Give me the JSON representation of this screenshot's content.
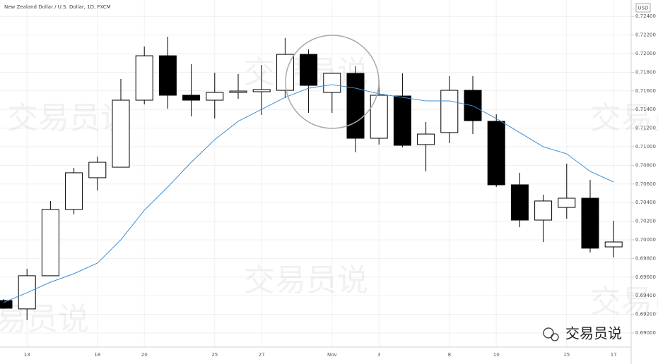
{
  "chart_data": {
    "type": "candlestick",
    "title": "New Zealand Dollar / U.S. Dollar, 1D, FXCM",
    "currency": "USD",
    "watermark": "交易员说",
    "logo": "交易员说",
    "categories": [
      null,
      "13",
      null,
      null,
      "18",
      null,
      "20",
      null,
      null,
      "25",
      null,
      "27",
      null,
      null,
      "Nov",
      null,
      "3",
      null,
      null,
      "8",
      null,
      "10",
      null,
      null,
      "15",
      null,
      "17"
    ],
    "open": [
      0.69348,
      0.69258,
      0.69614,
      0.70326,
      0.70667,
      0.7078,
      0.715,
      0.71977,
      0.71553,
      0.715,
      0.71583,
      0.71591,
      0.71606,
      0.71992,
      0.71583,
      0.71788,
      0.71091,
      0.71545,
      0.71023,
      0.71152,
      0.71606,
      0.71273,
      0.70591,
      0.70212,
      0.70348,
      0.70447,
      0.69924
    ],
    "high": [
      0.69364,
      0.69689,
      0.70417,
      0.70773,
      0.70894,
      0.71727,
      0.72076,
      0.72182,
      0.71886,
      0.71795,
      0.7178,
      0.71879,
      0.72167,
      0.72045,
      0.71788,
      0.71864,
      0.7172,
      0.71788,
      0.71265,
      0.71758,
      0.71758,
      0.71348,
      0.7072,
      0.70485,
      0.70818,
      0.70644,
      0.70205
    ],
    "low": [
      0.69258,
      0.69136,
      0.69614,
      0.70273,
      0.7053,
      0.7078,
      0.71455,
      0.71409,
      0.71326,
      0.71303,
      0.71515,
      0.71341,
      0.71523,
      0.71364,
      0.71364,
      0.7094,
      0.71023,
      0.70992,
      0.70735,
      0.71038,
      0.71136,
      0.70568,
      0.70136,
      0.69977,
      0.70227,
      0.69864,
      0.69811
    ],
    "close": [
      0.69265,
      0.69614,
      0.70326,
      0.7072,
      0.70833,
      0.715,
      0.71977,
      0.71553,
      0.715,
      0.71583,
      0.71598,
      0.71614,
      0.71992,
      0.71659,
      0.71788,
      0.71091,
      0.71553,
      0.71015,
      0.71136,
      0.71606,
      0.7128,
      0.70591,
      0.70212,
      0.70417,
      0.70447,
      0.6991,
      0.69977
    ],
    "up_color": "#ffffff",
    "down_color": "#000000",
    "ma": {
      "color": "#3a8fd9",
      "values": [
        0.69326,
        0.69432,
        0.69545,
        0.69636,
        0.6975,
        0.7,
        0.70318,
        0.70568,
        0.70833,
        0.71076,
        0.71273,
        0.71402,
        0.7153,
        0.71629,
        0.71667,
        0.71629,
        0.71568,
        0.7153,
        0.71492,
        0.71492,
        0.71439,
        0.71303,
        0.71152,
        0.71,
        0.70924,
        0.70735,
        0.70621
      ]
    },
    "ylim": [
      0.68848,
      0.72576
    ],
    "yticks": [
      {
        "value": 0.69,
        "label": "0.69000"
      },
      {
        "value": 0.692,
        "label": "0.69200"
      },
      {
        "value": 0.694,
        "label": "0.69400"
      },
      {
        "value": 0.696,
        "label": "0.69600"
      },
      {
        "value": 0.698,
        "label": "0.69800"
      },
      {
        "value": 0.7,
        "label": "0.70000"
      },
      {
        "value": 0.702,
        "label": "0.70200"
      },
      {
        "value": 0.704,
        "label": "0.70400"
      },
      {
        "value": 0.706,
        "label": "0.70600"
      },
      {
        "value": 0.708,
        "label": "0.70800"
      },
      {
        "value": 0.71,
        "label": "0.71000"
      },
      {
        "value": 0.712,
        "label": "0.71200"
      },
      {
        "value": 0.714,
        "label": "0.71400"
      },
      {
        "value": 0.716,
        "label": "0.71600"
      },
      {
        "value": 0.718,
        "label": "0.71800"
      },
      {
        "value": 0.72,
        "label": "0.72000"
      },
      {
        "value": 0.722,
        "label": "0.72200"
      },
      {
        "value": 0.724,
        "label": "0.72400"
      }
    ],
    "grid": true
  }
}
